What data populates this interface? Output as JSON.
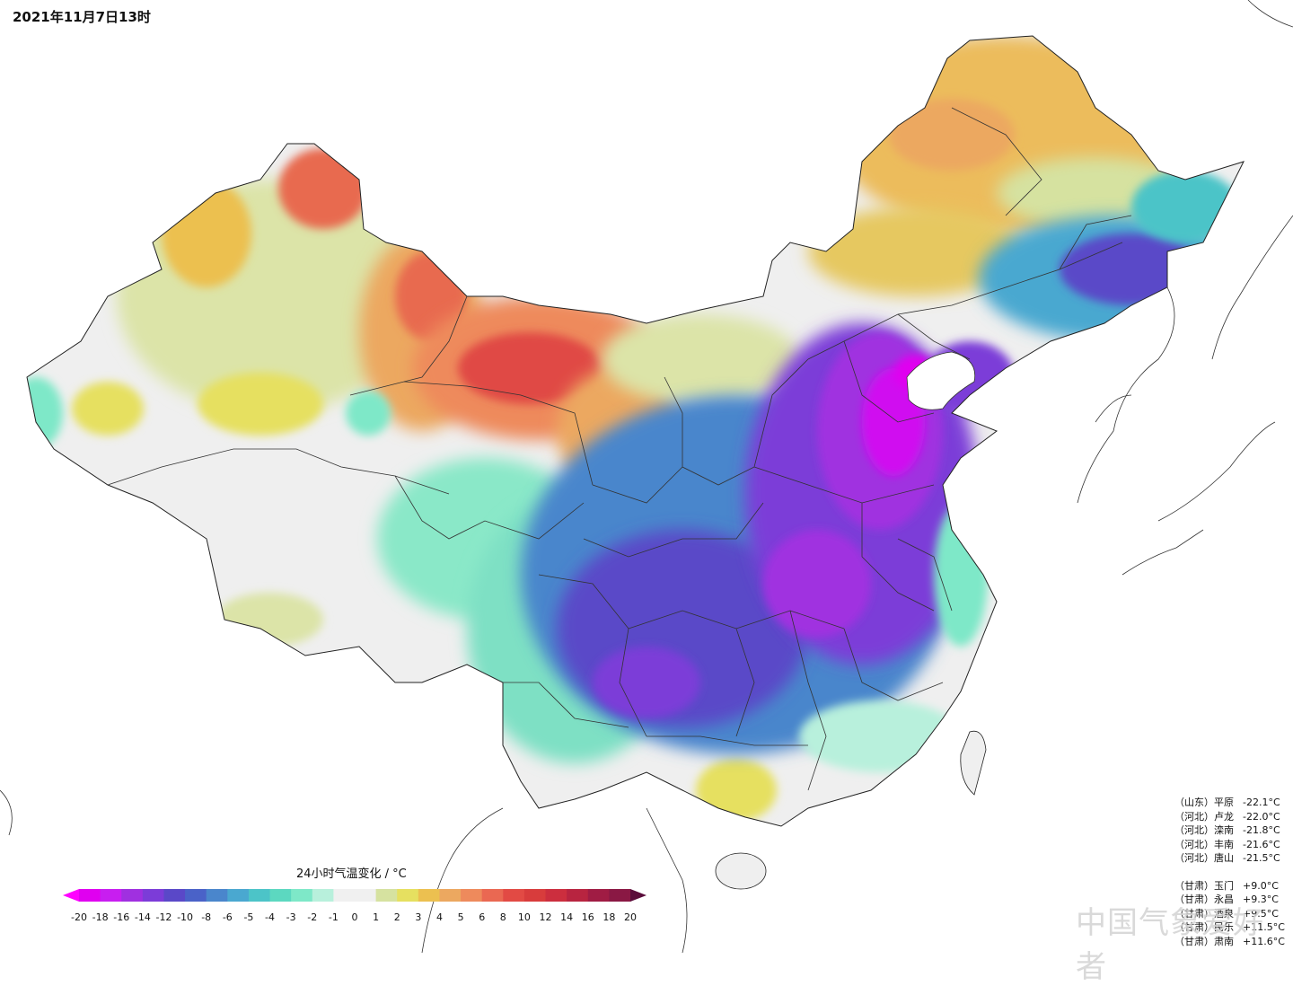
{
  "timestamp": "2021年11月7日13时",
  "legend": {
    "title": "24小时气温变化 / °C",
    "ticks": [
      "-20",
      "-18",
      "-16",
      "-14",
      "-12",
      "-10",
      "-8",
      "-6",
      "-5",
      "-4",
      "-3",
      "-2",
      "-1",
      "0",
      "1",
      "2",
      "3",
      "4",
      "5",
      "6",
      "8",
      "10",
      "12",
      "14",
      "16",
      "18",
      "20"
    ],
    "colors": [
      "#e000f0",
      "#c81ef0",
      "#a030e0",
      "#7c3cd8",
      "#5a48c8",
      "#4a62c8",
      "#4a86cc",
      "#4aa8d0",
      "#4cc4c8",
      "#5cd8c0",
      "#7ee8c8",
      "#b8f0dc",
      "#f0f0f0",
      "#f0f0f0",
      "#d6e2a0",
      "#e6e060",
      "#ecc050",
      "#eca860",
      "#ee8a5c",
      "#ea6852",
      "#e24a44",
      "#d83c3c",
      "#cc2e3e",
      "#b82440",
      "#a01c44",
      "#8a1844"
    ]
  },
  "stations": {
    "drops": [
      {
        "prov": "（山东）",
        "name": "平原",
        "value": "-22.1°C"
      },
      {
        "prov": "（河北）",
        "name": "卢龙",
        "value": "-22.0°C"
      },
      {
        "prov": "（河北）",
        "name": "滦南",
        "value": "-21.8°C"
      },
      {
        "prov": "（河北）",
        "name": "丰南",
        "value": "-21.6°C"
      },
      {
        "prov": "（河北）",
        "name": "唐山",
        "value": "-21.5°C"
      }
    ],
    "rises": [
      {
        "prov": "（甘肃）",
        "name": "玉门",
        "value": "+9.0°C"
      },
      {
        "prov": "（甘肃）",
        "name": "永昌",
        "value": "+9.3°C"
      },
      {
        "prov": "（甘肃）",
        "name": "酒泉",
        "value": "+9.5°C"
      },
      {
        "prov": "（甘肃）",
        "name": "民乐",
        "value": "+11.5°C"
      },
      {
        "prov": "（甘肃）",
        "name": "肃南",
        "value": "+11.6°C"
      }
    ]
  },
  "watermark": "中国气象爱好者"
}
